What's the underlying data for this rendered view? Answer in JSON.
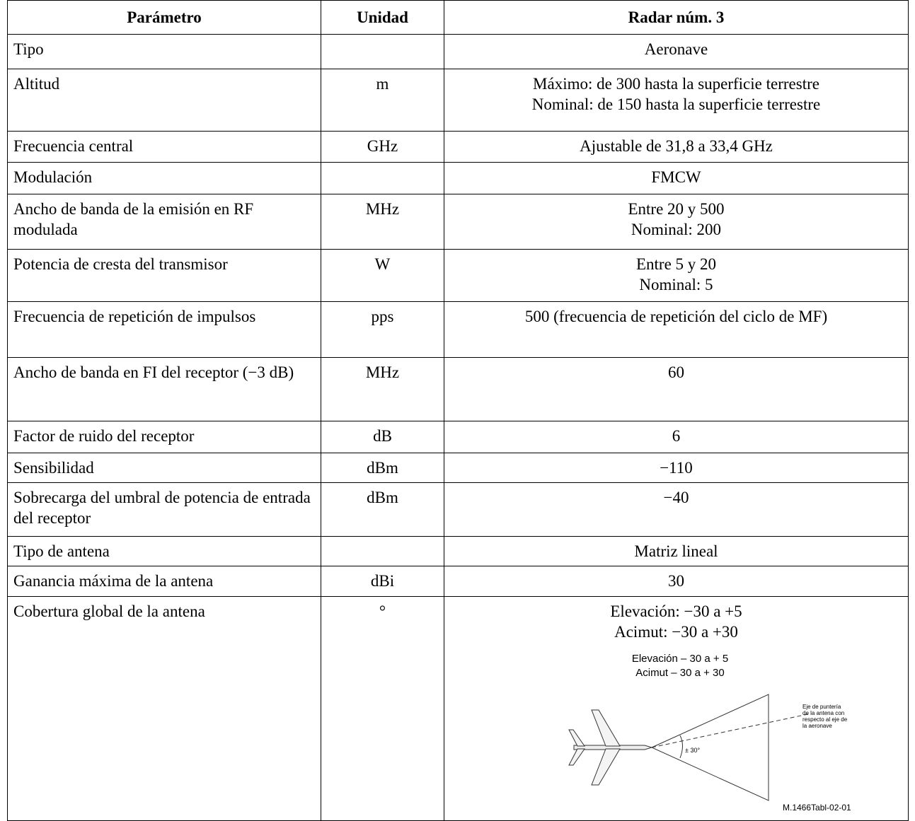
{
  "table": {
    "header": [
      "Parámetro",
      "Unidad",
      "Radar núm. 3"
    ],
    "rows": [
      [
        "Tipo",
        "",
        [
          "Aeronave"
        ]
      ],
      [
        "Altitud",
        "m",
        [
          "Máximo: de 300 hasta la superficie terrestre",
          "Nominal: de 150 hasta la superficie terrestre"
        ]
      ],
      [
        "Frecuencia central",
        "GHz",
        [
          "Ajustable de 31,8 a 33,4 GHz"
        ]
      ],
      [
        "Modulación",
        "",
        [
          "FMCW"
        ]
      ],
      [
        "Ancho de banda de la emisión en RF modulada",
        "MHz",
        [
          "Entre 20 y 500",
          "Nominal: 200"
        ]
      ],
      [
        "Potencia de cresta del transmisor",
        "W",
        [
          "Entre 5 y 20",
          "Nominal: 5"
        ]
      ],
      [
        "Frecuencia de repetición de impulsos",
        "pps",
        [
          "500 (frecuencia de repetición del ciclo de MF)"
        ]
      ],
      [
        "Ancho de banda en FI del receptor (−3 dB)",
        "MHz",
        [
          "60"
        ]
      ],
      [
        "Factor de ruido del receptor",
        "dB",
        [
          "6"
        ]
      ],
      [
        "Sensibilidad",
        "dBm",
        [
          "−110"
        ]
      ],
      [
        "Sobrecarga del umbral de potencia de entrada del receptor",
        "dBm",
        [
          "−40"
        ]
      ],
      [
        "Tipo de antena",
        "",
        [
          "Matriz lineal"
        ]
      ],
      [
        "Ganancia máxima de la antena",
        "dBi",
        [
          "30"
        ]
      ],
      [
        "Cobertura global de la antena",
        "°",
        [
          "Elevación: −30 a +5",
          "Acimut: −30 a +30"
        ]
      ]
    ]
  },
  "figure": {
    "lines": [
      "Elevación – 30 a + 5",
      "Acimut – 30 a + 30"
    ],
    "axis_note": [
      "Eje de puntería",
      "de la antena con",
      "respecto al eje de",
      "la aeronave"
    ],
    "angle": "± 30°",
    "ref": "M.1466Tabl-02-01"
  }
}
